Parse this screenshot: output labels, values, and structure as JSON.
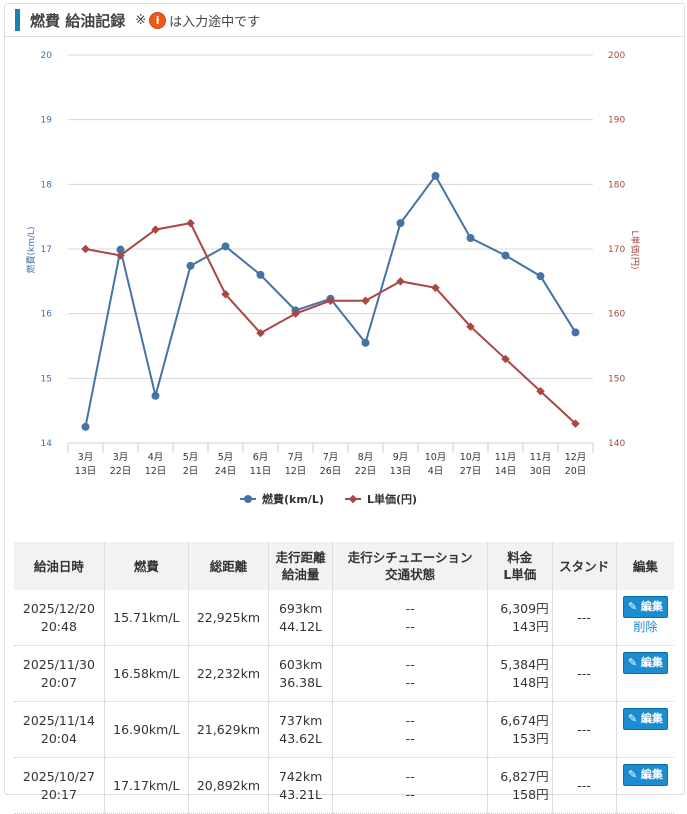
{
  "header": {
    "title": "燃費 給油記録",
    "note_prefix": "※",
    "note_icon": "info-icon",
    "note_icon_glyph": "i",
    "note_suffix": "は入力途中です"
  },
  "chart_data": {
    "type": "line",
    "categories": [
      "3月\n13日",
      "3月\n22日",
      "4月\n12日",
      "5月\n2日",
      "5月\n24日",
      "6月\n11日",
      "7月\n12日",
      "7月\n26日",
      "8月\n22日",
      "9月\n13日",
      "10月\n4日",
      "10月\n27日",
      "11月\n14日",
      "11月\n30日",
      "12月\n20日"
    ],
    "series": [
      {
        "name": "燃費(km/L)",
        "axis": "left",
        "color": "#4572a7",
        "values": [
          14.25,
          16.99,
          14.73,
          16.74,
          17.04,
          16.6,
          16.05,
          16.23,
          15.55,
          17.4,
          18.13,
          17.17,
          16.9,
          16.58,
          15.71
        ]
      },
      {
        "name": "L単価(円)",
        "axis": "right",
        "color": "#aa4643",
        "values": [
          170,
          169,
          173,
          174,
          163,
          157,
          160,
          162,
          162,
          165,
          164,
          158,
          153,
          148,
          143
        ]
      }
    ],
    "ylabel_left": "燃費(km/L)",
    "ylabel_right": "L単価(円)",
    "ylim_left": [
      14,
      20
    ],
    "ylim_right": [
      140,
      200
    ],
    "yticks_left": [
      "14",
      "15",
      "16",
      "17",
      "18",
      "19",
      "20"
    ],
    "yticks_right": [
      "140",
      "150",
      "160",
      "170",
      "180",
      "190",
      "200"
    ],
    "grid": true,
    "legend": "bottom"
  },
  "table": {
    "headers": [
      [
        "給油日時"
      ],
      [
        "燃費"
      ],
      [
        "総距離"
      ],
      [
        "走行距離",
        "給油量"
      ],
      [
        "走行シチュエーション",
        "交通状態"
      ],
      [
        "料金",
        "L単価"
      ],
      [
        "スタンド"
      ],
      [
        "編集"
      ]
    ],
    "edit_label": "編集",
    "delete_label": "削除",
    "rows": [
      {
        "date": "2025/12/20",
        "time": "20:48",
        "eff": "15.71km/L",
        "total": "22,925km",
        "dist": "693km",
        "fuel": "44.12L",
        "sit": "--",
        "traffic": "--",
        "price": "6,309円",
        "unit": "143円",
        "stand": "---",
        "delete": true
      },
      {
        "date": "2025/11/30",
        "time": "20:07",
        "eff": "16.58km/L",
        "total": "22,232km",
        "dist": "603km",
        "fuel": "36.38L",
        "sit": "--",
        "traffic": "--",
        "price": "5,384円",
        "unit": "148円",
        "stand": "---"
      },
      {
        "date": "2025/11/14",
        "time": "20:04",
        "eff": "16.90km/L",
        "total": "21,629km",
        "dist": "737km",
        "fuel": "43.62L",
        "sit": "--",
        "traffic": "--",
        "price": "6,674円",
        "unit": "153円",
        "stand": "---"
      },
      {
        "date": "2025/10/27",
        "time": "20:17",
        "eff": "17.17km/L",
        "total": "20,892km",
        "dist": "742km",
        "fuel": "43.21L",
        "sit": "--",
        "traffic": "--",
        "price": "6,827円",
        "unit": "158円",
        "stand": "---"
      }
    ]
  }
}
